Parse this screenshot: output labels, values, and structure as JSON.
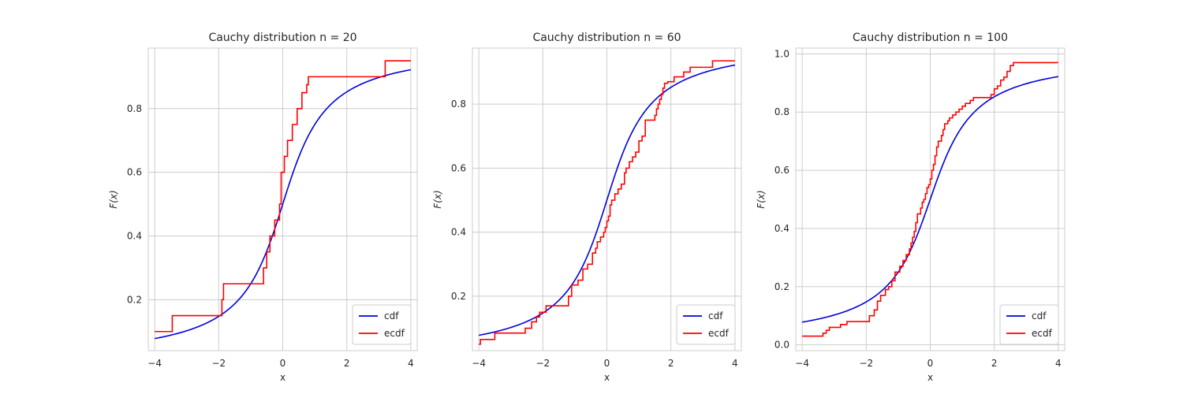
{
  "chart_data": [
    {
      "type": "line",
      "title": "Cauchy distribution n = 20",
      "xlabel": "x",
      "ylabel": "F(x)",
      "xlim": [
        -4.2,
        4.2
      ],
      "ylim": [
        0.04,
        0.99
      ],
      "xticks": [
        -4,
        -2,
        0,
        2,
        4
      ],
      "xtick_labels": [
        "−4",
        "−2",
        "0",
        "2",
        "4"
      ],
      "yticks": [
        0.2,
        0.4,
        0.6,
        0.8
      ],
      "ytick_labels": [
        "0.2",
        "0.4",
        "0.6",
        "0.8"
      ],
      "grid": true,
      "legend": "lower-right",
      "series": [
        {
          "name": "cdf",
          "kind": "cauchy_cdf",
          "color": "#0000dd",
          "x_range": [
            -4,
            4
          ]
        },
        {
          "name": "ecdf",
          "kind": "step",
          "color": "#ff0000",
          "x": [
            -4.0,
            -3.45,
            -1.9,
            -1.85,
            -0.6,
            -0.5,
            -0.4,
            -0.25,
            -0.1,
            -0.05,
            0.05,
            0.15,
            0.3,
            0.45,
            0.6,
            0.75,
            0.8,
            0.85,
            0.9,
            3.2,
            4.0
          ],
          "y": [
            0.1,
            0.15,
            0.2,
            0.25,
            0.3,
            0.35,
            0.4,
            0.45,
            0.5,
            0.6,
            0.65,
            0.7,
            0.75,
            0.8,
            0.85,
            0.875,
            0.9,
            0.9,
            0.9,
            0.95,
            0.95
          ]
        }
      ]
    },
    {
      "type": "line",
      "title": "Cauchy distribution n = 60",
      "xlabel": "x",
      "ylabel": "F(x)",
      "xlim": [
        -4.2,
        4.2
      ],
      "ylim": [
        0.03,
        0.975
      ],
      "xticks": [
        -4,
        -2,
        0,
        2,
        4
      ],
      "xtick_labels": [
        "−4",
        "−2",
        "0",
        "2",
        "4"
      ],
      "yticks": [
        0.2,
        0.4,
        0.6,
        0.8
      ],
      "ytick_labels": [
        "0.2",
        "0.4",
        "0.6",
        "0.8"
      ],
      "grid": true,
      "legend": "lower-right",
      "series": [
        {
          "name": "cdf",
          "kind": "cauchy_cdf",
          "color": "#0000dd",
          "x_range": [
            -4,
            4
          ]
        },
        {
          "name": "ecdf",
          "kind": "step",
          "color": "#ff0000",
          "x": [
            -4.0,
            -3.95,
            -3.5,
            -2.55,
            -2.35,
            -2.2,
            -2.1,
            -1.9,
            -1.2,
            -1.1,
            -0.9,
            -0.75,
            -0.6,
            -0.45,
            -0.35,
            -0.3,
            -0.2,
            -0.1,
            -0.05,
            0.0,
            0.05,
            0.1,
            0.15,
            0.25,
            0.35,
            0.45,
            0.55,
            0.6,
            0.7,
            0.8,
            0.9,
            1.0,
            1.1,
            1.2,
            1.5,
            1.55,
            1.6,
            1.65,
            1.7,
            1.75,
            1.8,
            1.85,
            1.9,
            2.1,
            2.4,
            2.6,
            3.3,
            4.0
          ],
          "y": [
            0.05,
            0.065,
            0.085,
            0.1,
            0.12,
            0.135,
            0.15,
            0.17,
            0.2,
            0.235,
            0.25,
            0.285,
            0.3,
            0.335,
            0.35,
            0.37,
            0.385,
            0.4,
            0.415,
            0.435,
            0.45,
            0.485,
            0.5,
            0.52,
            0.535,
            0.55,
            0.585,
            0.6,
            0.62,
            0.635,
            0.65,
            0.685,
            0.7,
            0.75,
            0.765,
            0.785,
            0.8,
            0.815,
            0.83,
            0.85,
            0.865,
            0.865,
            0.87,
            0.885,
            0.9,
            0.915,
            0.935,
            0.935
          ]
        }
      ]
    },
    {
      "type": "line",
      "title": "Cauchy distribution n = 100",
      "xlabel": "x",
      "ylabel": "F(x)",
      "xlim": [
        -4.2,
        4.2
      ],
      "ylim": [
        -0.02,
        1.02
      ],
      "xticks": [
        -4,
        -2,
        0,
        2,
        4
      ],
      "xtick_labels": [
        "−4",
        "−2",
        "0",
        "2",
        "4"
      ],
      "yticks": [
        0.0,
        0.2,
        0.4,
        0.6,
        0.8,
        1.0
      ],
      "ytick_labels": [
        "0.0",
        "0.2",
        "0.4",
        "0.6",
        "0.8",
        "1.0"
      ],
      "grid": true,
      "legend": "lower-right",
      "series": [
        {
          "name": "cdf",
          "kind": "cauchy_cdf",
          "color": "#0000dd",
          "x_range": [
            -4,
            4
          ]
        },
        {
          "name": "ecdf",
          "kind": "step",
          "color": "#ff0000",
          "x": [
            -4.0,
            -3.35,
            -3.25,
            -3.15,
            -2.8,
            -2.6,
            -2.4,
            -1.9,
            -1.75,
            -1.65,
            -1.55,
            -1.4,
            -1.3,
            -1.2,
            -1.1,
            -0.95,
            -0.85,
            -0.75,
            -0.65,
            -0.6,
            -0.55,
            -0.5,
            -0.45,
            -0.4,
            -0.3,
            -0.25,
            -0.2,
            -0.15,
            -0.1,
            -0.05,
            0.0,
            0.05,
            0.1,
            0.15,
            0.2,
            0.25,
            0.35,
            0.4,
            0.45,
            0.55,
            0.6,
            0.7,
            0.8,
            0.9,
            1.0,
            1.1,
            1.25,
            1.35,
            1.5,
            1.9,
            2.0,
            2.1,
            2.2,
            2.3,
            2.4,
            2.5,
            2.6,
            4.0
          ],
          "y": [
            0.03,
            0.04,
            0.05,
            0.06,
            0.07,
            0.08,
            0.08,
            0.1,
            0.12,
            0.15,
            0.17,
            0.19,
            0.2,
            0.22,
            0.25,
            0.27,
            0.29,
            0.31,
            0.33,
            0.35,
            0.37,
            0.39,
            0.42,
            0.45,
            0.47,
            0.49,
            0.5,
            0.52,
            0.54,
            0.55,
            0.57,
            0.6,
            0.62,
            0.65,
            0.68,
            0.7,
            0.72,
            0.74,
            0.76,
            0.77,
            0.78,
            0.79,
            0.8,
            0.81,
            0.82,
            0.83,
            0.84,
            0.85,
            0.85,
            0.86,
            0.88,
            0.89,
            0.91,
            0.92,
            0.94,
            0.96,
            0.97,
            0.97
          ]
        }
      ]
    }
  ]
}
